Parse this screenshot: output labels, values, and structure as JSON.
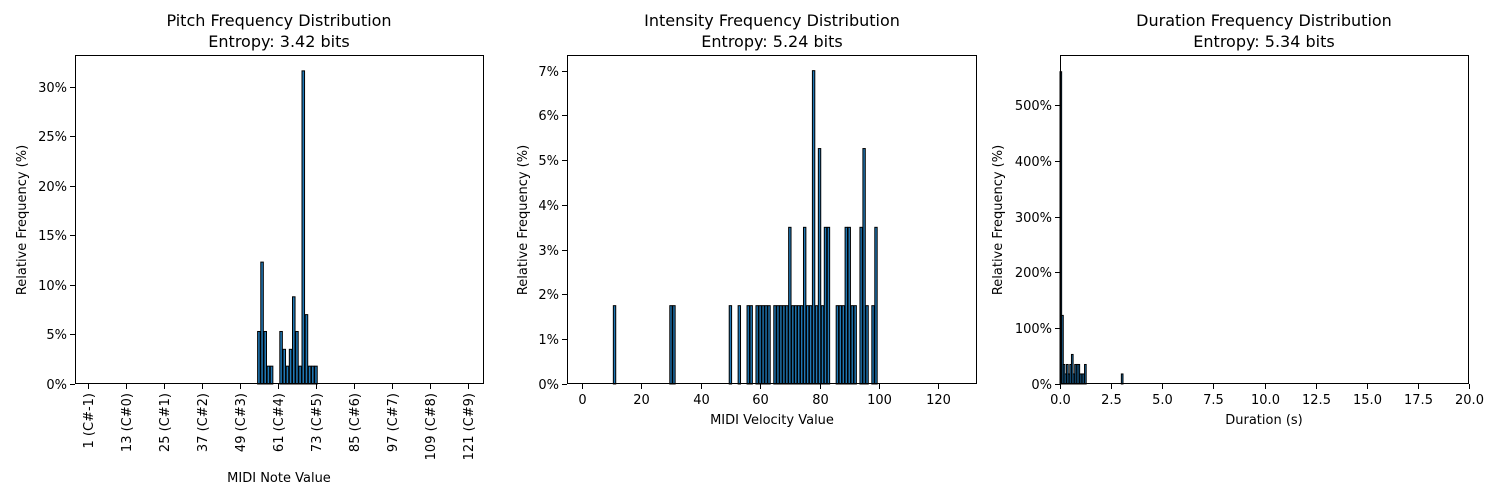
{
  "colors": {
    "bar_fill": "#1f77b4",
    "bar_edge": "#000000",
    "axis": "#000000"
  },
  "chart_data": [
    {
      "type": "bar",
      "title": "Pitch Frequency Distribution",
      "subtitle": "Entropy: 3.42 bits",
      "xlabel": "MIDI Note Value",
      "ylabel": "Relative Frequency (%)",
      "xlim": [
        -3.0,
        126.0
      ],
      "ylim": [
        0,
        0.332
      ],
      "bar_width": 0.8,
      "x_ticks": [
        1,
        13,
        25,
        37,
        49,
        61,
        73,
        85,
        97,
        109,
        121
      ],
      "x_tick_labels": [
        "1 (C#-1)",
        "13 (C#0)",
        "25 (C#1)",
        "37 (C#2)",
        "49 (C#3)",
        "61 (C#4)",
        "73 (C#5)",
        "85 (C#6)",
        "97 (C#7)",
        "109 (C#8)",
        "121 (C#9)"
      ],
      "y_ticks": [
        0,
        0.05,
        0.1,
        0.15,
        0.2,
        0.25,
        0.3
      ],
      "y_tick_labels": [
        "0%",
        "5%",
        "10%",
        "15%",
        "20%",
        "25%",
        "30%"
      ],
      "x": [
        55,
        56,
        57,
        58,
        59,
        62,
        63,
        64,
        65,
        66,
        67,
        68,
        69,
        70,
        71,
        72,
        73
      ],
      "values": [
        0.053,
        0.123,
        0.053,
        0.018,
        0.018,
        0.053,
        0.035,
        0.018,
        0.035,
        0.088,
        0.053,
        0.018,
        0.316,
        0.07,
        0.018,
        0.018,
        0.018
      ]
    },
    {
      "type": "bar",
      "title": "Intensity Frequency Distribution",
      "subtitle": "Entropy: 5.24 bits",
      "xlabel": "MIDI Velocity Value",
      "ylabel": "Relative Frequency (%)",
      "xlim": [
        -5.0,
        133.0
      ],
      "ylim": [
        0,
        0.0735
      ],
      "bar_width": 0.8,
      "x_ticks": [
        0,
        20,
        40,
        60,
        80,
        100,
        120
      ],
      "x_tick_labels": [
        "0",
        "20",
        "40",
        "60",
        "80",
        "100",
        "120"
      ],
      "y_ticks": [
        0,
        0.01,
        0.02,
        0.03,
        0.04,
        0.05,
        0.06,
        0.07
      ],
      "y_tick_labels": [
        "0%",
        "1%",
        "2%",
        "3%",
        "4%",
        "5%",
        "6%",
        "7%"
      ],
      "x": [
        11,
        30,
        31,
        50,
        53,
        56,
        57,
        59,
        60,
        61,
        62,
        63,
        65,
        66,
        67,
        68,
        69,
        70,
        71,
        72,
        73,
        74,
        75,
        76,
        77,
        78,
        79,
        80,
        81,
        82,
        83,
        86,
        87,
        88,
        89,
        90,
        91,
        92,
        94,
        95,
        96,
        98,
        99
      ],
      "values": [
        0.0175,
        0.0175,
        0.0175,
        0.0175,
        0.0175,
        0.0175,
        0.0175,
        0.0175,
        0.0175,
        0.0175,
        0.0175,
        0.0175,
        0.0175,
        0.0175,
        0.0175,
        0.0175,
        0.0175,
        0.035,
        0.0175,
        0.0175,
        0.0175,
        0.0175,
        0.035,
        0.0175,
        0.0175,
        0.07,
        0.0175,
        0.0526,
        0.0175,
        0.035,
        0.035,
        0.0175,
        0.0175,
        0.0175,
        0.035,
        0.035,
        0.0175,
        0.0175,
        0.035,
        0.0526,
        0.0175,
        0.0175,
        0.035
      ]
    },
    {
      "type": "bar",
      "title": "Duration Frequency Distribution",
      "subtitle": "Entropy: 5.34 bits",
      "xlabel": "Duration (s)",
      "ylabel": "Relative Frequency (%)",
      "xlim": [
        0,
        20
      ],
      "ylim": [
        0,
        5.9
      ],
      "bar_width": 0.08,
      "x_ticks": [
        0,
        2.5,
        5,
        7.5,
        10,
        12.5,
        15,
        17.5,
        20
      ],
      "x_tick_labels": [
        "0.0",
        "2.5",
        "5.0",
        "7.5",
        "10.0",
        "12.5",
        "15.0",
        "17.5",
        "20.0"
      ],
      "y_ticks": [
        0,
        1,
        2,
        3,
        4,
        5
      ],
      "y_tick_labels": [
        "0%",
        "100%",
        "200%",
        "300%",
        "400%",
        "500%"
      ],
      "x": [
        0.04,
        0.12,
        0.2,
        0.28,
        0.36,
        0.44,
        0.52,
        0.6,
        0.68,
        0.76,
        0.84,
        0.92,
        1.0,
        1.08,
        1.16,
        1.24,
        3.04
      ],
      "values": [
        5.6,
        1.23,
        0.35,
        0.18,
        0.35,
        0.18,
        0.35,
        0.53,
        0.18,
        0.35,
        0.35,
        0.35,
        0.18,
        0.18,
        0.18,
        0.35,
        0.18
      ]
    }
  ]
}
